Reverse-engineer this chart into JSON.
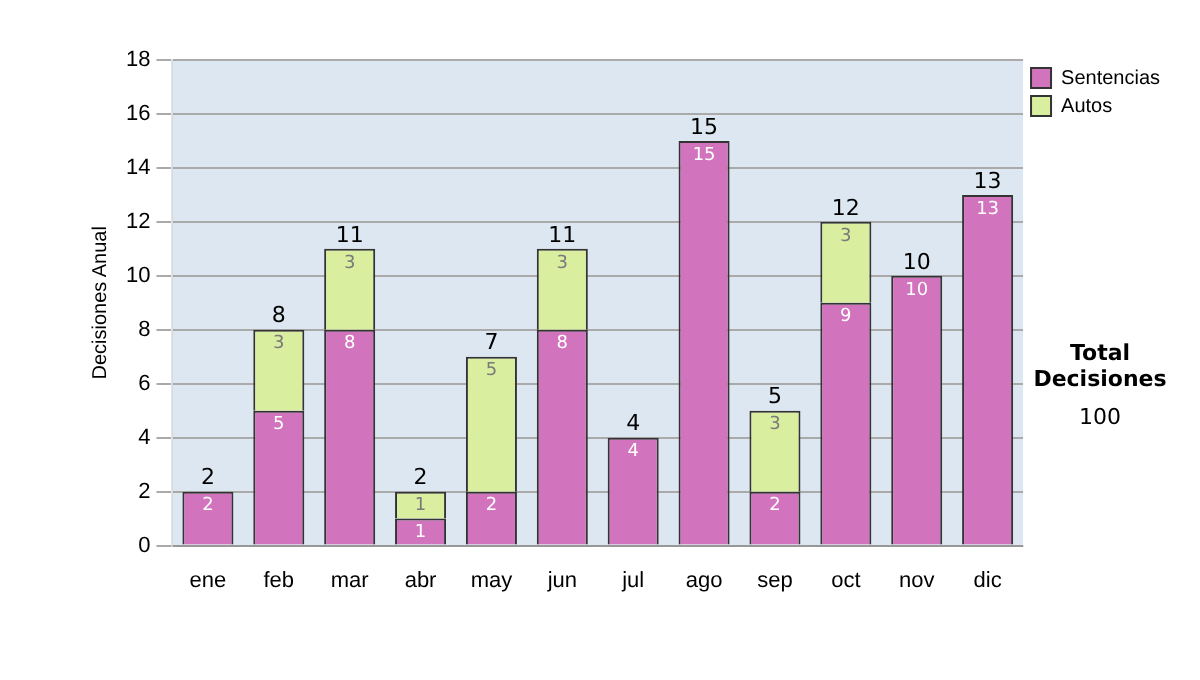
{
  "chart_data": {
    "type": "bar",
    "stacked": true,
    "ylabel": "Decisiones Anual",
    "categories": [
      "ene",
      "feb",
      "mar",
      "abr",
      "may",
      "jun",
      "jul",
      "ago",
      "sep",
      "oct",
      "nov",
      "dic"
    ],
    "series": [
      {
        "name": "Sentencias",
        "color": "#d274bd",
        "values": [
          2,
          5,
          8,
          1,
          2,
          8,
          4,
          15,
          2,
          9,
          10,
          13
        ]
      },
      {
        "name": "Autos",
        "color": "#d9ef9f",
        "values": [
          null,
          3,
          3,
          1,
          5,
          3,
          null,
          null,
          3,
          3,
          null,
          null
        ]
      }
    ],
    "ylim": [
      0,
      18
    ],
    "yticks": [
      0,
      2,
      4,
      6,
      8,
      10,
      12,
      14,
      16,
      18
    ],
    "grid": "y",
    "legend": "right",
    "data_labels": true,
    "totals": [
      "2",
      "8",
      "11",
      "2",
      "7",
      "11",
      "4",
      "15",
      "5",
      "12",
      "10",
      "13"
    ],
    "annotations": [
      "Total Decisiones",
      "100"
    ]
  }
}
